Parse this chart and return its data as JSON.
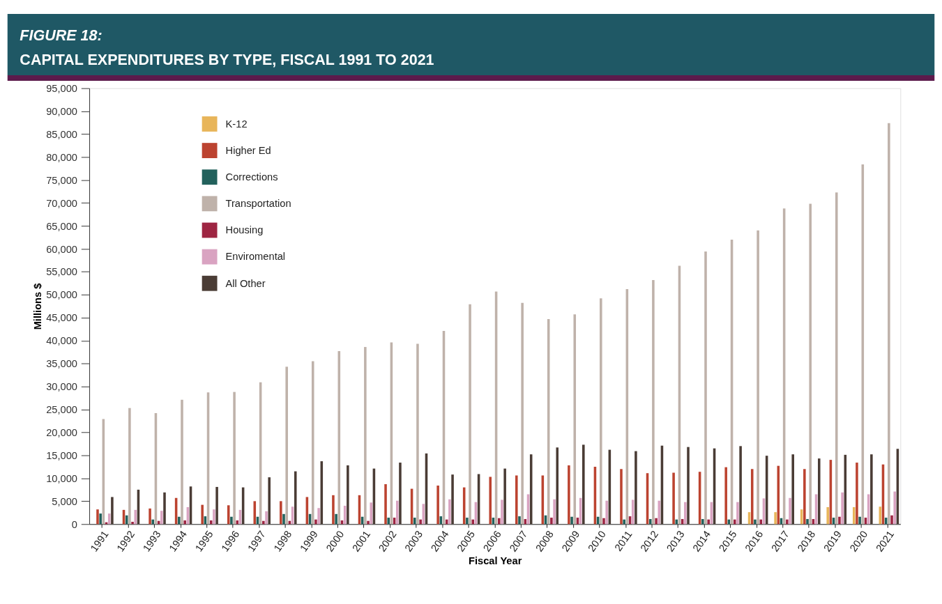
{
  "chart_data": {
    "type": "bar",
    "title": "FIGURE 18:",
    "subtitle": "CAPITAL EXPENDITURES BY TYPE, FISCAL 1991 TO 2021",
    "xlabel": "Fiscal Year",
    "ylabel": "Millions $",
    "categories": [
      "1991",
      "1992",
      "1993",
      "1994",
      "1995",
      "1996",
      "1997",
      "1998",
      "1999",
      "2000",
      "2001",
      "2002",
      "2003",
      "2004",
      "2005",
      "2006",
      "2007",
      "2008",
      "2009",
      "2010",
      "2011",
      "2012",
      "2013",
      "2014",
      "2015",
      "2016",
      "2017",
      "2018",
      "2019",
      "2020",
      "2021"
    ],
    "series": [
      {
        "name": "K-12",
        "color": "#e8b55a",
        "values": [
          null,
          null,
          null,
          null,
          null,
          null,
          null,
          null,
          null,
          null,
          null,
          null,
          null,
          null,
          null,
          null,
          null,
          null,
          null,
          null,
          null,
          null,
          null,
          null,
          null,
          2600,
          2600,
          3200,
          3700,
          3700,
          3800
        ]
      },
      {
        "name": "Higher Ed",
        "color": "#bc4330",
        "values": [
          3200,
          3100,
          3400,
          5700,
          4200,
          4100,
          5000,
          5000,
          5900,
          6300,
          6300,
          8700,
          7700,
          8400,
          8000,
          10300,
          10600,
          10600,
          12800,
          12500,
          12000,
          11100,
          11200,
          11400,
          12400,
          12000,
          12700,
          12000,
          14000,
          13400,
          13000
        ]
      },
      {
        "name": "Corrections",
        "color": "#22615c",
        "values": [
          2300,
          1900,
          1000,
          1600,
          1700,
          1600,
          1600,
          2200,
          2200,
          2200,
          1600,
          1400,
          1400,
          1700,
          1400,
          1400,
          1700,
          1900,
          1600,
          1600,
          1000,
          1100,
          1000,
          1100,
          1000,
          1000,
          1300,
          1100,
          1400,
          1600,
          1400
        ]
      },
      {
        "name": "Transportation",
        "color": "#bfb2aa",
        "values": [
          22900,
          25300,
          24200,
          27100,
          28700,
          28800,
          30900,
          34300,
          35500,
          37700,
          38600,
          39600,
          39300,
          42100,
          47900,
          50700,
          48200,
          44700,
          45700,
          49200,
          51200,
          53200,
          56300,
          59400,
          62000,
          64000,
          68800,
          69800,
          72300,
          78400,
          87400
        ]
      },
      {
        "name": "Housing",
        "color": "#9e2542",
        "values": [
          400,
          500,
          700,
          800,
          800,
          800,
          700,
          700,
          1000,
          800,
          700,
          1400,
          1000,
          1000,
          1000,
          1300,
          1100,
          1400,
          1400,
          1300,
          1700,
          1300,
          1100,
          1000,
          1000,
          1000,
          1000,
          1100,
          1600,
          1400,
          1900
        ]
      },
      {
        "name": "Enviromental",
        "color": "#d9a3c1",
        "values": [
          2300,
          3100,
          2900,
          3700,
          3200,
          3100,
          2800,
          3800,
          3500,
          4000,
          4700,
          5100,
          4400,
          5400,
          4800,
          5300,
          6500,
          5400,
          5700,
          5100,
          5300,
          5100,
          4800,
          4800,
          4800,
          5600,
          5700,
          6500,
          6900,
          6500,
          7100
        ]
      },
      {
        "name": "All Other",
        "color": "#4a3c35",
        "values": [
          5900,
          7500,
          6900,
          8200,
          8100,
          8000,
          10200,
          11500,
          13700,
          12800,
          12100,
          13400,
          15400,
          10800,
          10900,
          12100,
          15200,
          16700,
          17300,
          16200,
          15900,
          17100,
          16800,
          16500,
          17000,
          14900,
          15200,
          14300,
          15100,
          15200,
          16400
        ]
      }
    ],
    "ylim": [
      0,
      95000
    ],
    "yticks": [
      0,
      {
        "value": 5000,
        "label": "5,000"
      },
      {
        "value": 10000,
        "label": "10,000"
      },
      {
        "value": 15000,
        "label": "15,000"
      },
      {
        "value": 20000,
        "label": "20,000"
      },
      {
        "value": 25000,
        "label": "25,000"
      },
      {
        "value": 30000,
        "label": "30,000"
      },
      {
        "value": 35000,
        "label": "35,000"
      },
      {
        "value": 40000,
        "label": "40,000"
      },
      {
        "value": 45000,
        "label": "45,000"
      },
      {
        "value": 50000,
        "label": "50,000"
      },
      {
        "value": 55000,
        "label": "55,000"
      },
      {
        "value": 60000,
        "label": "60,000"
      },
      {
        "value": 65000,
        "label": "65,000"
      },
      {
        "value": 70000,
        "label": "70,000"
      },
      {
        "value": 75000,
        "label": "75,000"
      },
      {
        "value": 80000,
        "label": "80,000"
      },
      {
        "value": 85000,
        "label": "85,000"
      },
      {
        "value": 90000,
        "label": "90,000"
      },
      {
        "value": 95000,
        "label": "95,000"
      }
    ],
    "grid": false,
    "legend": "top left"
  }
}
